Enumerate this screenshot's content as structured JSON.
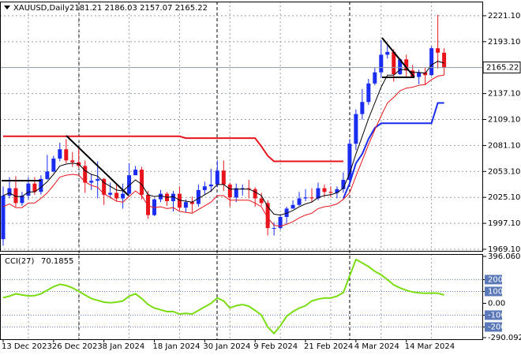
{
  "chart_data": [
    {
      "type": "candlestick",
      "title": "XAUUSD,Daily",
      "categories": [
        "13 Dec 2023",
        null,
        null,
        null,
        null,
        null,
        null,
        null,
        "26 Dec 2023",
        null,
        null,
        null,
        null,
        null,
        null,
        null,
        "8 Jan 2024",
        null,
        null,
        null,
        null,
        null,
        null,
        null,
        "18 Jan 2024",
        null,
        null,
        null,
        null,
        null,
        null,
        null,
        "30 Jan 2024",
        null,
        null,
        null,
        null,
        null,
        null,
        null,
        "9 Feb 2024",
        null,
        null,
        null,
        null,
        null,
        null,
        null,
        "21 Feb 2024",
        null,
        null,
        null,
        null,
        null,
        null,
        null,
        "4 Mar 2024",
        null,
        null,
        null,
        null,
        null,
        null,
        null,
        "14 Mar 2024",
        null,
        null,
        null,
        null,
        null,
        null
      ],
      "open": [
        1980,
        2027,
        2035,
        2019,
        2027,
        2040,
        2031,
        2045,
        2053,
        2067,
        2077,
        2065,
        2063,
        2059,
        2041,
        2043,
        2045,
        2028,
        2030,
        2024,
        2029,
        2049,
        2055,
        2028,
        2006,
        2023,
        2029,
        2021,
        2029,
        2014,
        2020,
        2018,
        2033,
        2037,
        2039,
        2054,
        2039,
        2025,
        2035,
        2035,
        2034,
        2024,
        2019,
        1992,
        1992,
        2004,
        2013,
        2017,
        2024,
        2025,
        2024,
        2035,
        2031,
        2030,
        2034,
        2044,
        2083,
        2115,
        2128,
        2148,
        2160,
        2179,
        2182,
        2158,
        2174,
        2162,
        2155,
        2160,
        2157,
        2186,
        2181.21
      ],
      "high": [
        2037,
        2047,
        2048,
        2031,
        2047,
        2047,
        2049,
        2071,
        2070,
        2084,
        2088,
        2074,
        2079,
        2065,
        2050,
        2064,
        2046,
        2041,
        2040,
        2040,
        2062,
        2059,
        2058,
        2032,
        2024,
        2033,
        2031,
        2032,
        2037,
        2023,
        2026,
        2039,
        2042,
        2056,
        2065,
        2065,
        2041,
        2040,
        2039,
        2044,
        2036,
        2030,
        2022,
        1998,
        2007,
        2015,
        2022,
        2031,
        2034,
        2035,
        2041,
        2039,
        2037,
        2037,
        2052,
        2088,
        2120,
        2142,
        2153,
        2165,
        2195,
        2189,
        2185,
        2175,
        2179,
        2168,
        2163,
        2165,
        2188,
        2222,
        2186.03
      ],
      "low": [
        1973,
        2024,
        2015,
        2016,
        2023,
        2028,
        2028,
        2044,
        2052,
        2064,
        2062,
        2058,
        2057,
        2030,
        2033,
        2024,
        2017,
        2024,
        2021,
        2013,
        2028,
        2049,
        2023,
        2002,
        2005,
        2020,
        2016,
        2010,
        2011,
        2009,
        2009,
        2015,
        2028,
        2031,
        2036,
        2032,
        2015,
        2020,
        2027,
        2024,
        2015,
        2016,
        1984,
        1984,
        1990,
        1996,
        2013,
        2016,
        2021,
        2020,
        2022,
        2026,
        2025,
        2024,
        2030,
        2041,
        2076,
        2109,
        2125,
        2146,
        2154,
        2175,
        2150,
        2157,
        2154,
        2155,
        2147,
        2146,
        2156,
        2164,
        2157.07
      ],
      "close": [
        2027,
        2035,
        2019,
        2027,
        2040,
        2031,
        2045,
        2053,
        2067,
        2077,
        2065,
        2063,
        2059,
        2041,
        2043,
        2045,
        2028,
        2030,
        2024,
        2029,
        2049,
        2055,
        2028,
        2006,
        2023,
        2029,
        2021,
        2029,
        2014,
        2020,
        2018,
        2033,
        2037,
        2039,
        2054,
        2039,
        2025,
        2035,
        2035,
        2034,
        2024,
        2019,
        1992,
        1992,
        2004,
        2013,
        2017,
        2024,
        2025,
        2024,
        2035,
        2031,
        2030,
        2034,
        2044,
        2083,
        2115,
        2128,
        2148,
        2160,
        2179,
        2182,
        2158,
        2174,
        2162,
        2155,
        2160,
        2157,
        2186,
        2181.21,
        2165.22
      ],
      "up_color": "#1a2cf0",
      "down_color": "#e8141c",
      "series": [
        {
          "color": "#000000",
          "width": 1,
          "values": [
            2027,
            2030,
            2026,
            2026,
            2031,
            2031,
            2036,
            2042,
            2050,
            2059,
            2061,
            2062,
            2061,
            2054,
            2050,
            2048,
            2041,
            2037,
            2033,
            2032,
            2038,
            2044,
            2039,
            2028,
            2026,
            2027,
            2025,
            2026,
            2022,
            2021,
            2020,
            2024,
            2028,
            2032,
            2039,
            2039,
            2034,
            2034,
            2034,
            2034,
            2031,
            2027,
            2015,
            2007,
            2006,
            2008,
            2011,
            2015,
            2018,
            2020,
            2025,
            2027,
            2028,
            2030,
            2035,
            2051,
            2072,
            2091,
            2110,
            2127,
            2144,
            2157,
            2157,
            2163,
            2163,
            2160,
            2160,
            2159,
            2168,
            2172,
            2170
          ]
        },
        {
          "color": "#e8141c",
          "width": 1,
          "values": [
            2015,
            2018,
            2014,
            2014,
            2019,
            2019,
            2024,
            2030,
            2038,
            2047,
            2049,
            2050,
            2049,
            2042,
            2038,
            2036,
            2029,
            2025,
            2021,
            2020,
            2026,
            2032,
            2027,
            2016,
            2014,
            2015,
            2013,
            2014,
            2010,
            2009,
            2008,
            2012,
            2016,
            2020,
            2027,
            2027,
            2022,
            2022,
            2022,
            2022,
            2019,
            2015,
            2003,
            1995,
            1994,
            1996,
            1999,
            2003,
            2006,
            2008,
            2013,
            2015,
            2016,
            2018,
            2023,
            2030,
            2048,
            2065,
            2082,
            2098,
            2113,
            2127,
            2133,
            2140,
            2143,
            2144,
            2146,
            2147,
            2152,
            2156,
            2157
          ]
        },
        {
          "color": "#e8141c",
          "width": 2,
          "values": [
            2091,
            2091,
            2091,
            2091,
            2091,
            2091,
            2091,
            2091,
            2091,
            2091,
            2091,
            2091,
            2091,
            2091,
            2091,
            2091,
            2091,
            2091,
            2091,
            2091,
            2091,
            2091,
            2091,
            2091,
            2091,
            2091,
            2091,
            2091,
            2091,
            2089,
            2089,
            2089,
            2089,
            2089,
            2089,
            2089,
            2089,
            2089,
            2089,
            2089,
            2089,
            2080,
            2070,
            2064,
            2064,
            2064,
            2064,
            2064,
            2064,
            2064,
            2064,
            2064,
            2064,
            2064,
            2064,
            null,
            null,
            null,
            null,
            null,
            null,
            null,
            null,
            null,
            null,
            null,
            null,
            null,
            null,
            null,
            null
          ]
        },
        {
          "color": "#1a2cf0",
          "width": 2,
          "values": [
            null,
            null,
            null,
            null,
            null,
            null,
            null,
            null,
            null,
            null,
            null,
            null,
            null,
            null,
            null,
            null,
            null,
            null,
            null,
            null,
            null,
            null,
            null,
            null,
            null,
            null,
            null,
            null,
            null,
            null,
            null,
            null,
            null,
            null,
            null,
            null,
            null,
            null,
            null,
            null,
            null,
            null,
            null,
            null,
            null,
            null,
            null,
            null,
            null,
            null,
            null,
            null,
            null,
            null,
            2024,
            2040,
            2062,
            2072,
            2088,
            2100,
            2105,
            2105,
            2105,
            2105,
            2105,
            2105,
            2105,
            2105,
            2105,
            2127,
            2127
          ]
        }
      ],
      "ylim": [
        1967.4,
        2235.5
      ],
      "yticks": [
        {
          "value": 2221.1,
          "label": "2221.10"
        },
        {
          "value": 2193.1,
          "label": "2193.10"
        },
        {
          "value": 2137.1,
          "label": "2137.10"
        },
        {
          "value": 2109.1,
          "label": "2109.10"
        },
        {
          "value": 2081.1,
          "label": "2081.10"
        },
        {
          "value": 2053.1,
          "label": "2053.10"
        },
        {
          "value": 2025.1,
          "label": "2025.10"
        },
        {
          "value": 1997.1,
          "label": "1997.10"
        },
        {
          "value": 1969.1,
          "label": "1969.10"
        }
      ],
      "grid": true
    },
    {
      "type": "line",
      "title": "CCI(27)",
      "series": [
        {
          "color": "#7cdc14",
          "values": [
            47,
            60,
            80,
            70,
            62,
            65,
            80,
            110,
            140,
            160,
            150,
            130,
            100,
            70,
            40,
            25,
            10,
            5,
            10,
            20,
            60,
            80,
            40,
            -10,
            -40,
            -55,
            -70,
            -70,
            -90,
            -85,
            -90,
            -60,
            -30,
            0,
            45,
            20,
            -40,
            -20,
            -10,
            -25,
            -60,
            -100,
            -200,
            -255,
            -190,
            -110,
            -70,
            -40,
            -20,
            20,
            35,
            45,
            45,
            60,
            90,
            230,
            370,
            340,
            310,
            270,
            240,
            200,
            155,
            130,
            110,
            95,
            88,
            85,
            86,
            85,
            70.1855
          ]
        }
      ],
      "ylim": [
        -290.0927,
        396.0602
      ],
      "yticks": [
        396.0602,
        200,
        100,
        {
          "value": 0,
          "label": "0.00"
        },
        -100,
        -200,
        -290.0927
      ],
      "level_color": "#5b79b8"
    }
  ]
}
